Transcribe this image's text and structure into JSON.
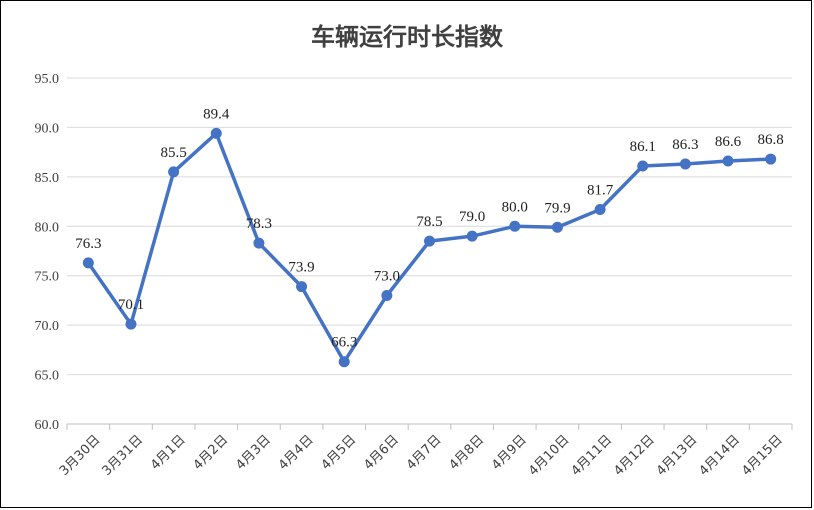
{
  "chart_data": {
    "type": "line",
    "title": "车辆运行时长指数",
    "xlabel": "",
    "ylabel": "",
    "categories": [
      "3月30日",
      "3月31日",
      "4月1日",
      "4月2日",
      "4月3日",
      "4月4日",
      "4月5日",
      "4月6日",
      "4月7日",
      "4月8日",
      "4月9日",
      "4月10日",
      "4月11日",
      "4月12日",
      "4月13日",
      "4月14日",
      "4月15日"
    ],
    "series": [
      {
        "values": [
          76.3,
          70.1,
          85.5,
          89.4,
          78.3,
          73.9,
          66.3,
          73.0,
          78.5,
          79.0,
          80.0,
          79.9,
          81.7,
          86.1,
          86.3,
          86.6,
          86.8
        ],
        "labels": [
          "76.3",
          "70.1",
          "85.5",
          "89.4",
          "78.3",
          "73.9",
          "66.3",
          "73.0",
          "78.5",
          "79.0",
          "80.0",
          "79.9",
          "81.7",
          "86.1",
          "86.3",
          "86.6",
          "86.8"
        ],
        "color": "#4472c4"
      }
    ],
    "ylim": [
      60,
      95
    ],
    "yticks": [
      "60.0",
      "65.0",
      "70.0",
      "75.0",
      "80.0",
      "85.0",
      "90.0",
      "95.0"
    ],
    "grid": true,
    "legend": "none"
  }
}
